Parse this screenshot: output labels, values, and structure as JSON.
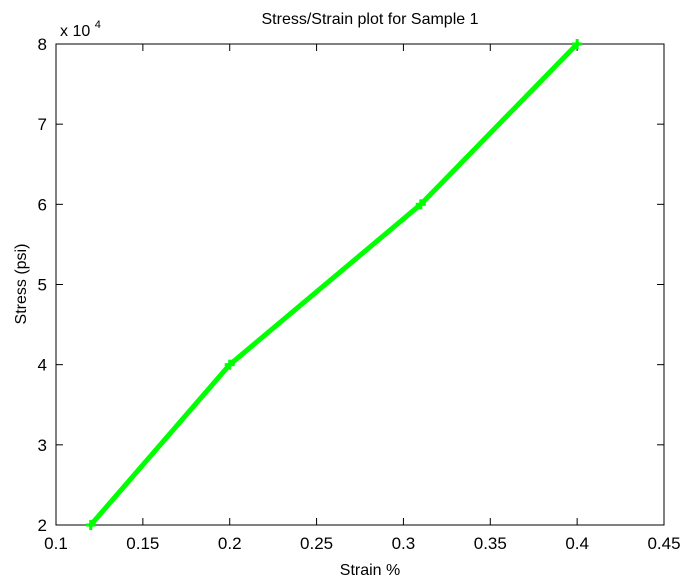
{
  "chart_data": {
    "type": "line",
    "title": "Stress/Strain plot for Sample 1",
    "xlabel": "Strain %",
    "ylabel": "Stress (psi)",
    "y_exponent_base": "x 10",
    "y_exponent_power": "4",
    "xlim": [
      0.1,
      0.45
    ],
    "ylim": [
      20000,
      80000
    ],
    "x_ticks": [
      0.1,
      0.15,
      0.2,
      0.25,
      0.3,
      0.35,
      0.4,
      0.45
    ],
    "x_tick_labels": [
      "0.1",
      "0.15",
      "0.2",
      "0.25",
      "0.3",
      "0.35",
      "0.4",
      "0.45"
    ],
    "y_ticks": [
      20000,
      30000,
      40000,
      50000,
      60000,
      70000,
      80000
    ],
    "y_tick_labels": [
      "2",
      "3",
      "4",
      "5",
      "6",
      "7",
      "8"
    ],
    "grid": false,
    "series": [
      {
        "color": "#00ff00",
        "marker": "plus",
        "x": [
          0.12,
          0.2,
          0.31,
          0.4
        ],
        "y": [
          20000,
          40000,
          60000,
          80000
        ]
      }
    ]
  }
}
